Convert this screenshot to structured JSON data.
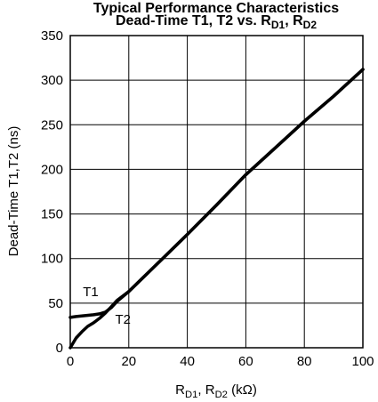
{
  "chart_data": {
    "type": "line",
    "title_top": "Typical Performance Characteristics",
    "title": {
      "parts": [
        {
          "text": "Dead-Time T1, T2 vs. R"
        },
        {
          "text": "D1",
          "sub": true
        },
        {
          "text": ", R"
        },
        {
          "text": "D2",
          "sub": true
        }
      ]
    },
    "ylabel": "Dead-Time T1,T2 (ns)",
    "xlabel": {
      "parts": [
        {
          "text": "R"
        },
        {
          "text": "D1",
          "sub": true
        },
        {
          "text": ", R"
        },
        {
          "text": "D2",
          "sub": true
        },
        {
          "text": " (kΩ)"
        }
      ]
    },
    "xlim": [
      0,
      100
    ],
    "ylim": [
      0,
      350
    ],
    "xticks": [
      0,
      20,
      40,
      60,
      80,
      100
    ],
    "yticks": [
      0,
      50,
      100,
      150,
      200,
      250,
      300,
      350
    ],
    "grid": true,
    "series": [
      {
        "name": "T1",
        "x": [
          0,
          2,
          5,
          8,
          10,
          12,
          14,
          16,
          20,
          30,
          40,
          50,
          60,
          70,
          80,
          90,
          100
        ],
        "y": [
          34,
          35,
          36,
          37,
          38,
          40,
          45,
          52,
          63,
          95,
          127,
          160,
          194,
          224,
          254,
          282,
          312
        ]
      },
      {
        "name": "T2",
        "x": [
          0,
          2,
          4,
          6,
          8,
          10,
          12,
          14,
          16,
          20,
          30,
          40,
          50,
          60,
          70,
          80,
          90,
          100
        ],
        "y": [
          0,
          11,
          18,
          24,
          28,
          33,
          39,
          46,
          53,
          63,
          95,
          127,
          160,
          194,
          224,
          254,
          282,
          312
        ]
      }
    ],
    "annotations": [
      {
        "text": "T1",
        "x": 7,
        "y": 58
      },
      {
        "text": "T2",
        "x": 18,
        "y": 27
      }
    ]
  }
}
